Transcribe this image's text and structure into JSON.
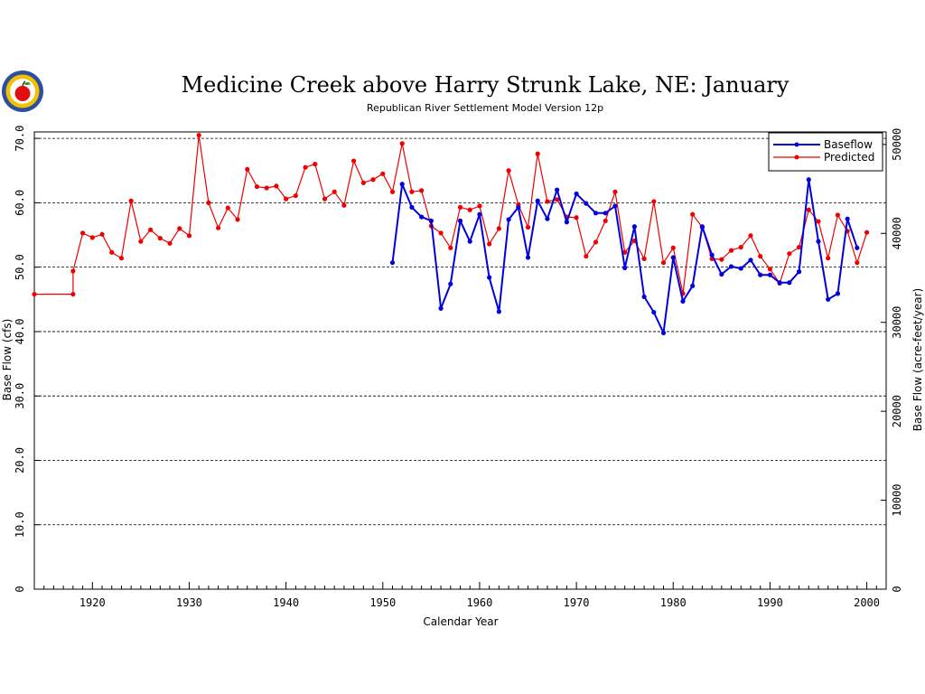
{
  "chart_data": {
    "type": "line",
    "title": "Medicine Creek above Harry Strunk Lake, NE: January",
    "subtitle": "Republican River Settlement Model Version 12p",
    "xlabel": "Calendar Year",
    "ylabel": "Base Flow (cfs)",
    "y2label": "Base Flow  (acre-feet/year)",
    "xlim": [
      1914,
      2002
    ],
    "ylim": [
      0,
      71
    ],
    "xticks": [
      "1920",
      "1930",
      "1940",
      "1950",
      "1960",
      "1970",
      "1980",
      "1990",
      "2000"
    ],
    "yticks": [
      "0",
      "10.0",
      "20.0",
      "30.0",
      "40.0",
      "50.0",
      "60.0",
      "70.0"
    ],
    "y2ticks": [
      "0",
      "10000",
      "20000",
      "30000",
      "40000",
      "50000"
    ],
    "grid": "horizontal dashed",
    "legend_position": "top-right",
    "series": [
      {
        "name": "Baseflow",
        "color": "#0000dd",
        "x": [
          1951,
          1952,
          1953,
          1954,
          1955,
          1956,
          1957,
          1958,
          1959,
          1960,
          1961,
          1962,
          1963,
          1964,
          1965,
          1966,
          1967,
          1968,
          1969,
          1970,
          1971,
          1972,
          1973,
          1974,
          1975,
          1976,
          1977,
          1978,
          1979,
          1980,
          1981,
          1982,
          1983,
          1984,
          1985,
          1986,
          1987,
          1988,
          1989,
          1990,
          1991,
          1992,
          1993,
          1994,
          1995,
          1996,
          1997,
          1998,
          1999
        ],
        "y": [
          50.7,
          62.9,
          59.3,
          57.8,
          57.2,
          43.6,
          47.4,
          57.2,
          54.0,
          58.2,
          48.4,
          43.1,
          57.4,
          59.3,
          51.5,
          60.3,
          57.5,
          62.0,
          57.0,
          61.4,
          59.9,
          58.4,
          58.4,
          59.5,
          49.9,
          56.3,
          45.4,
          43.0,
          39.8,
          51.5,
          44.7,
          47.1,
          56.3,
          51.9,
          48.9,
          50.1,
          49.8,
          51.1,
          48.8,
          48.8,
          47.6,
          47.6,
          49.3,
          63.6,
          54.0,
          45.0,
          45.9,
          57.5,
          53.0
        ]
      },
      {
        "name": "Predicted",
        "color": "#ee0000",
        "x": [
          1914,
          1918,
          1918,
          1919,
          1920,
          1921,
          1922,
          1923,
          1924,
          1925,
          1926,
          1927,
          1928,
          1929,
          1930,
          1931,
          1932,
          1933,
          1934,
          1935,
          1936,
          1937,
          1938,
          1939,
          1940,
          1941,
          1942,
          1943,
          1944,
          1945,
          1946,
          1947,
          1948,
          1949,
          1950,
          1951,
          1952,
          1953,
          1954,
          1955,
          1956,
          1957,
          1958,
          1959,
          1960,
          1961,
          1962,
          1963,
          1964,
          1965,
          1966,
          1967,
          1968,
          1969,
          1970,
          1971,
          1972,
          1973,
          1974,
          1975,
          1976,
          1977,
          1978,
          1979,
          1980,
          1981,
          1982,
          1983,
          1984,
          1985,
          1986,
          1987,
          1988,
          1989,
          1990,
          1991,
          1992,
          1993,
          1994,
          1995,
          1996,
          1997,
          1998,
          1999,
          2000
        ],
        "y": [
          45.8,
          45.8,
          49.4,
          55.3,
          54.6,
          55.1,
          52.3,
          51.4,
          60.3,
          54.0,
          55.8,
          54.5,
          53.7,
          56.0,
          54.9,
          70.5,
          60.0,
          56.1,
          59.2,
          57.4,
          65.2,
          62.5,
          62.3,
          62.6,
          60.6,
          61.1,
          65.5,
          66.0,
          60.6,
          61.7,
          59.6,
          66.5,
          63.1,
          63.6,
          64.5,
          61.7,
          69.2,
          61.7,
          61.9,
          56.4,
          55.3,
          53.0,
          59.3,
          58.9,
          59.5,
          53.6,
          56.0,
          65.0,
          59.7,
          56.2,
          67.6,
          60.2,
          60.5,
          57.8,
          57.7,
          51.7,
          53.9,
          57.2,
          61.7,
          52.3,
          54.1,
          51.3,
          60.2,
          50.7,
          53.0,
          45.9,
          58.2,
          56.2,
          51.3,
          51.2,
          52.6,
          53.1,
          54.9,
          51.7,
          49.7,
          47.5,
          52.1,
          53.1,
          58.9,
          57.1,
          51.4,
          58.1,
          55.6,
          50.7,
          55.4
        ]
      }
    ]
  }
}
